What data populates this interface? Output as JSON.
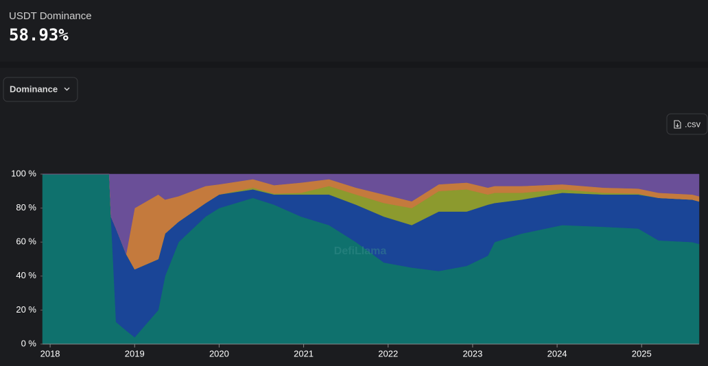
{
  "header": {
    "title": "USDT Dominance",
    "value": "58.93%"
  },
  "controls": {
    "dropdown": "Dominance",
    "download": ".csv"
  },
  "watermark": "DefiLlama",
  "chart_data": {
    "type": "area",
    "stacked": true,
    "x": [
      2017.91,
      2018.7,
      2018.72,
      2018.78,
      2018.9,
      2019.0,
      2019.28,
      2019.36,
      2019.52,
      2019.84,
      2020.0,
      2020.4,
      2020.65,
      2020.97,
      2021.3,
      2021.62,
      2021.95,
      2022.28,
      2022.6,
      2022.93,
      2023.18,
      2023.26,
      2023.58,
      2024.06,
      2024.55,
      2024.96,
      2025.2,
      2025.6,
      2025.68
    ],
    "series": [
      {
        "color": "#0f716d",
        "values": [
          100,
          100,
          75,
          13,
          8,
          4,
          20,
          40,
          60,
          75,
          80,
          86,
          82,
          75,
          70,
          60,
          48,
          45,
          43,
          46,
          52,
          60,
          65,
          70,
          69,
          68,
          61,
          60,
          58.93
        ]
      },
      {
        "color": "#1a4597",
        "values": [
          0,
          0,
          0,
          55,
          45,
          40,
          30,
          25,
          12,
          8,
          8,
          5,
          6,
          13,
          18,
          22,
          27,
          25,
          35,
          32,
          30,
          23,
          20,
          19,
          19,
          20,
          25,
          25,
          25
        ]
      },
      {
        "color": "#8c9a2e",
        "values": [
          0,
          0,
          0,
          0,
          0,
          0,
          0,
          0,
          0,
          0,
          0,
          1,
          0.5,
          1,
          5,
          6,
          8,
          10,
          12,
          13,
          6,
          6,
          4,
          2,
          1,
          0.5,
          0,
          0,
          0
        ]
      },
      {
        "color": "#c47a3d",
        "values": [
          0,
          0,
          0,
          0,
          0,
          36,
          38,
          20,
          15,
          10,
          6,
          5,
          5,
          6,
          4,
          4,
          5,
          4,
          4,
          4,
          4,
          4,
          4,
          3,
          3,
          3,
          3,
          3,
          3
        ]
      },
      {
        "color": "#6a4f98",
        "values": [
          0,
          0,
          25,
          32,
          47,
          20,
          12,
          15,
          13,
          7,
          6,
          3,
          6.5,
          5,
          3,
          8,
          12,
          16,
          6,
          5,
          8,
          7,
          7,
          6,
          8,
          8.5,
          11,
          12,
          13.07
        ]
      }
    ],
    "xlim": [
      2017.91,
      2025.68
    ],
    "xticks": [
      2018,
      2019,
      2020,
      2021,
      2022,
      2023,
      2024,
      2025
    ],
    "ylim": [
      0,
      100
    ],
    "yticks": [
      {
        "value": 0,
        "label": "0 %"
      },
      {
        "value": 20,
        "label": "20 %"
      },
      {
        "value": 40,
        "label": "40 %"
      },
      {
        "value": 60,
        "label": "60 %"
      },
      {
        "value": 80,
        "label": "80 %"
      },
      {
        "value": 100,
        "label": "100 %"
      }
    ]
  }
}
